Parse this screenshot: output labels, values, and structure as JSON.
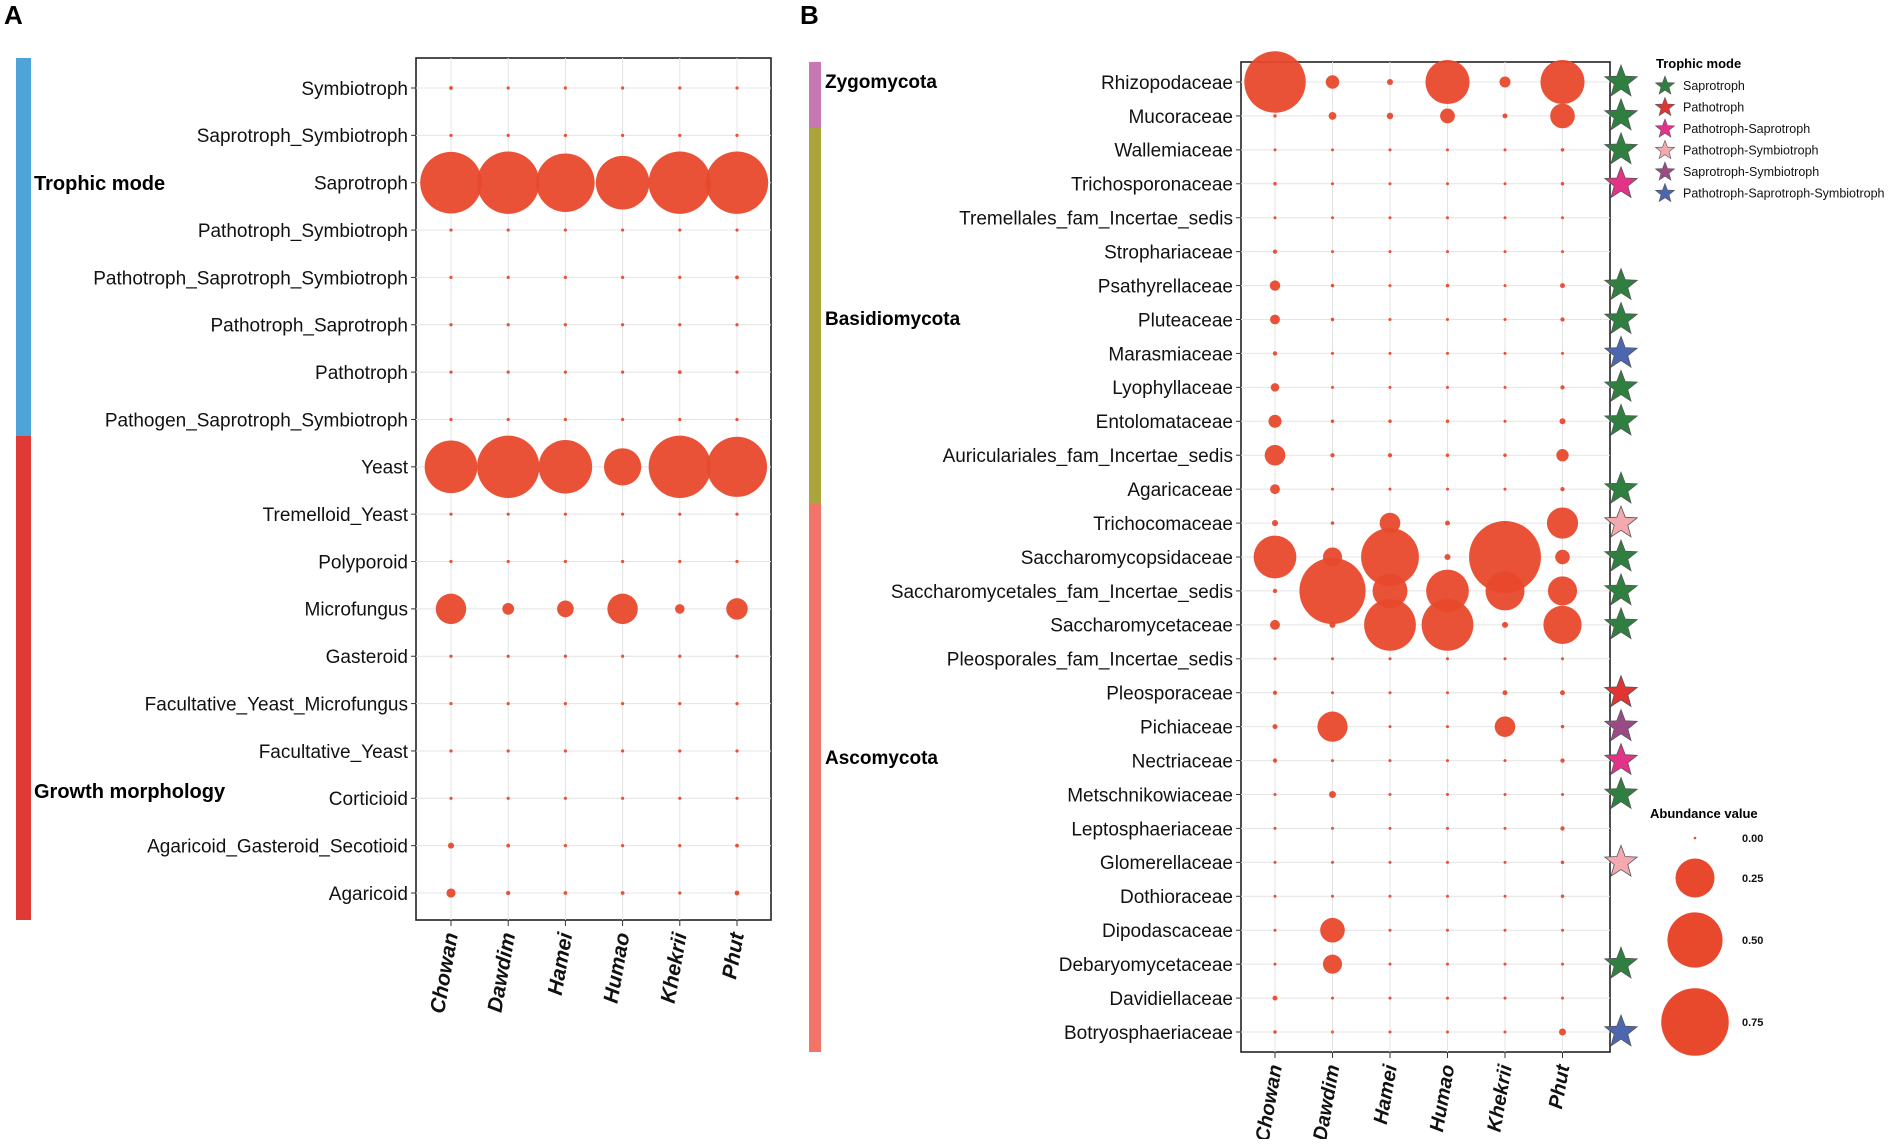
{
  "chart_data": [
    {
      "panel_label": "A",
      "type": "bubble",
      "x_labels": [
        "Chowan",
        "Dawdim",
        "Hamei",
        "Humao",
        "Khekrii",
        "Phut"
      ],
      "groups": [
        {
          "name": "Trophic mode",
          "color": "#4ea3d8"
        },
        {
          "name": "Growth morphology",
          "color": "#e03a36"
        }
      ],
      "rows": [
        {
          "label": "Symbiotroph",
          "group": 0,
          "values": [
            0.003,
            0.002,
            0.002,
            0.002,
            0.002,
            0.002
          ]
        },
        {
          "label": "Saprotroph_Symbiotroph",
          "group": 0,
          "values": [
            0.002,
            0.002,
            0.002,
            0.002,
            0.002,
            0.002
          ]
        },
        {
          "label": "Saprotroph",
          "group": 0,
          "values": [
            0.82,
            0.84,
            0.74,
            0.62,
            0.84,
            0.84
          ]
        },
        {
          "label": "Pathotroph_Symbiotroph",
          "group": 0,
          "values": [
            0.001,
            0.001,
            0.001,
            0.001,
            0.001,
            0.001
          ]
        },
        {
          "label": "Pathotroph_Saprotroph_Symbiotroph",
          "group": 0,
          "values": [
            0.002,
            0.002,
            0.002,
            0.002,
            0.002,
            0.003
          ]
        },
        {
          "label": "Pathotroph_Saprotroph",
          "group": 0,
          "values": [
            0.002,
            0.002,
            0.002,
            0.002,
            0.002,
            0.002
          ]
        },
        {
          "label": "Pathotroph",
          "group": 0,
          "values": [
            0.002,
            0.002,
            0.002,
            0.002,
            0.003,
            0.002
          ]
        },
        {
          "label": "Pathogen_Saprotroph_Symbiotroph",
          "group": 0,
          "values": [
            0.001,
            0.001,
            0.001,
            0.001,
            0.001,
            0.001
          ]
        },
        {
          "label": "Yeast",
          "group": 1,
          "values": [
            0.6,
            0.84,
            0.62,
            0.3,
            0.84,
            0.78
          ]
        },
        {
          "label": "Tremelloid_Yeast",
          "group": 1,
          "values": [
            0.001,
            0.001,
            0.001,
            0.001,
            0.001,
            0.001
          ]
        },
        {
          "label": "Polyporoid",
          "group": 1,
          "values": [
            0.001,
            0.001,
            0.001,
            0.001,
            0.001,
            0.001
          ]
        },
        {
          "label": "Microfungus",
          "group": 1,
          "values": [
            0.2,
            0.03,
            0.06,
            0.2,
            0.02,
            0.1
          ]
        },
        {
          "label": "Gasteroid",
          "group": 1,
          "values": [
            0.001,
            0.001,
            0.001,
            0.001,
            0.001,
            0.001
          ]
        },
        {
          "label": "Facultative_Yeast_Microfungus",
          "group": 1,
          "values": [
            0.001,
            0.001,
            0.001,
            0.001,
            0.001,
            0.001
          ]
        },
        {
          "label": "Facultative_Yeast",
          "group": 1,
          "values": [
            0.001,
            0.001,
            0.001,
            0.001,
            0.001,
            0.001
          ]
        },
        {
          "label": "Corticioid",
          "group": 1,
          "values": [
            0.001,
            0.001,
            0.001,
            0.001,
            0.001,
            0.001
          ]
        },
        {
          "label": "Agaricoid_Gasteroid_Secotioid",
          "group": 1,
          "values": [
            0.008,
            0.003,
            0.002,
            0.002,
            0.002,
            0.003
          ]
        },
        {
          "label": "Agaricoid",
          "group": 1,
          "values": [
            0.018,
            0.004,
            0.003,
            0.003,
            0.002,
            0.005
          ]
        }
      ]
    },
    {
      "panel_label": "B",
      "type": "bubble",
      "x_labels": [
        "Chowan",
        "Dawdim",
        "Hamei",
        "Humao",
        "Khekrii",
        "Phut"
      ],
      "groups": [
        {
          "name": "Zygomycota",
          "color": "#c878b0"
        },
        {
          "name": "Basidiomycota",
          "color": "#aaa43a"
        },
        {
          "name": "Ascomycota",
          "color": "#f07468"
        }
      ],
      "rows": [
        {
          "label": "Rhizopodaceae",
          "group": 0,
          "values": [
            0.62,
            0.03,
            0.006,
            0.32,
            0.02,
            0.32
          ],
          "trophic": 0
        },
        {
          "label": "Mucoraceae",
          "group": 0,
          "values": [
            0.002,
            0.01,
            0.007,
            0.036,
            0.004,
            0.1
          ],
          "trophic": 0
        },
        {
          "label": "Wallemiaceae",
          "group": 1,
          "values": [
            0.001,
            0.001,
            0.001,
            0.001,
            0.001,
            0.002
          ],
          "trophic": 0
        },
        {
          "label": "Trichosporonaceae",
          "group": 1,
          "values": [
            0.002,
            0.001,
            0.001,
            0.001,
            0.001,
            0.002
          ],
          "trophic": 2
        },
        {
          "label": "Tremellales_fam_Incertae_sedis",
          "group": 1,
          "values": [
            0.001,
            0.001,
            0.001,
            0.001,
            0.001,
            0.001
          ],
          "trophic": -1
        },
        {
          "label": "Strophariaceae",
          "group": 1,
          "values": [
            0.003,
            0.001,
            0.001,
            0.001,
            0.001,
            0.001
          ],
          "trophic": -1
        },
        {
          "label": "Psathyrellaceae",
          "group": 1,
          "values": [
            0.018,
            0.002,
            0.001,
            0.002,
            0.001,
            0.004
          ],
          "trophic": 0
        },
        {
          "label": "Pluteaceae",
          "group": 1,
          "values": [
            0.016,
            0.002,
            0.001,
            0.001,
            0.001,
            0.003
          ],
          "trophic": 0
        },
        {
          "label": "Marasmiaceae",
          "group": 1,
          "values": [
            0.003,
            0.001,
            0.001,
            0.001,
            0.001,
            0.001
          ],
          "trophic": 5
        },
        {
          "label": "Lyophyllaceae",
          "group": 1,
          "values": [
            0.012,
            0.001,
            0.001,
            0.001,
            0.001,
            0.003
          ],
          "trophic": 0
        },
        {
          "label": "Entolomataceae",
          "group": 1,
          "values": [
            0.028,
            0.002,
            0.002,
            0.002,
            0.001,
            0.006
          ],
          "trophic": 0
        },
        {
          "label": "Auriculariales_fam_Incertae_sedis",
          "group": 1,
          "values": [
            0.07,
            0.003,
            0.003,
            0.002,
            0.002,
            0.025
          ],
          "trophic": -1
        },
        {
          "label": "Agaricaceae",
          "group": 1,
          "values": [
            0.016,
            0.001,
            0.001,
            0.001,
            0.001,
            0.003
          ],
          "trophic": 0
        },
        {
          "label": "Trichocomaceae",
          "group": 2,
          "values": [
            0.006,
            0.002,
            0.07,
            0.004,
            0.001,
            0.16
          ],
          "trophic": 3
        },
        {
          "label": "Saccharomycopsidaceae",
          "group": 2,
          "values": [
            0.3,
            0.06,
            0.55,
            0.006,
            0.85,
            0.035
          ],
          "trophic": 0
        },
        {
          "label": "Saccharomycetales_fam_Incertae_sedis",
          "group": 2,
          "values": [
            0.003,
            0.72,
            0.2,
            0.3,
            0.25,
            0.14
          ],
          "trophic": 0
        },
        {
          "label": "Saccharomycetaceae",
          "group": 2,
          "values": [
            0.016,
            0.006,
            0.44,
            0.44,
            0.006,
            0.24
          ],
          "trophic": 0
        },
        {
          "label": "Pleosporales_fam_Incertae_sedis",
          "group": 2,
          "values": [
            0.001,
            0.001,
            0.001,
            0.001,
            0.001,
            0.001
          ],
          "trophic": -1
        },
        {
          "label": "Pleosporaceae",
          "group": 2,
          "values": [
            0.003,
            0.001,
            0.001,
            0.001,
            0.004,
            0.004
          ],
          "trophic": 1
        },
        {
          "label": "Pichiaceae",
          "group": 2,
          "values": [
            0.004,
            0.15,
            0.001,
            0.001,
            0.07,
            0.002
          ],
          "trophic": 4
        },
        {
          "label": "Nectriaceae",
          "group": 2,
          "values": [
            0.003,
            0.001,
            0.001,
            0.001,
            0.001,
            0.003
          ],
          "trophic": 2
        },
        {
          "label": "Metschnikowiaceae",
          "group": 2,
          "values": [
            0.001,
            0.008,
            0.001,
            0.001,
            0.001,
            0.001
          ],
          "trophic": 0
        },
        {
          "label": "Leptosphaeriaceae",
          "group": 2,
          "values": [
            0.001,
            0.001,
            0.001,
            0.001,
            0.001,
            0.003
          ],
          "trophic": -1
        },
        {
          "label": "Glomerellaceae",
          "group": 2,
          "values": [
            0.001,
            0.001,
            0.001,
            0.001,
            0.001,
            0.002
          ],
          "trophic": 3
        },
        {
          "label": "Dothioraceae",
          "group": 2,
          "values": [
            0.001,
            0.001,
            0.001,
            0.001,
            0.001,
            0.002
          ],
          "trophic": -1
        },
        {
          "label": "Dipodascaceae",
          "group": 2,
          "values": [
            0.001,
            0.1,
            0.001,
            0.001,
            0.001,
            0.001
          ],
          "trophic": -1
        },
        {
          "label": "Debaryomycetaceae",
          "group": 2,
          "values": [
            0.001,
            0.06,
            0.001,
            0.001,
            0.001,
            0.001
          ],
          "trophic": 0
        },
        {
          "label": "Davidiellaceae",
          "group": 2,
          "values": [
            0.004,
            0.001,
            0.001,
            0.001,
            0.001,
            0.001
          ],
          "trophic": -1
        },
        {
          "label": "Botryosphaeriaceae",
          "group": 2,
          "values": [
            0.002,
            0.001,
            0.001,
            0.001,
            0.001,
            0.008
          ],
          "trophic": 5
        }
      ],
      "trophic_legend": {
        "title": "Trophic mode",
        "items": [
          {
            "label": "Saprotroph",
            "color": "#2f8040"
          },
          {
            "label": "Pathotroph",
            "color": "#e03532"
          },
          {
            "label": "Pathotroph-Saprotroph",
            "color": "#e33388"
          },
          {
            "label": "Pathotroph-Symbiotroph",
            "color": "#f4a9ae"
          },
          {
            "label": "Saprotroph-Symbiotroph",
            "color": "#9a4b86"
          },
          {
            "label": "Pathotroph-Saprotroph-Symbiotroph",
            "color": "#4c67b0"
          }
        ]
      },
      "size_legend": {
        "title": "Abundance value",
        "values": [
          0.0,
          0.25,
          0.5,
          0.75
        ],
        "labels": [
          "0.00",
          "0.25",
          "0.50",
          "0.75"
        ]
      }
    }
  ],
  "bubble_color": "#e8492c"
}
